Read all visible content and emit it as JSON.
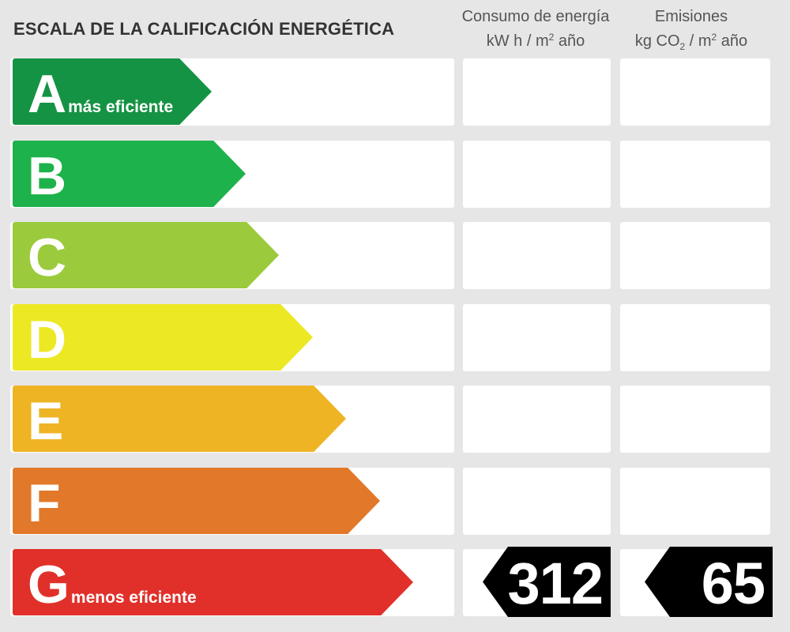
{
  "title": "ESCALA DE LA CALIFICACIÓN ENERGÉTICA",
  "columns": {
    "energy": {
      "line1": "Consumo de energía",
      "unit_a": "kW h  / m",
      "unit_sup": "2",
      "unit_b": " año"
    },
    "emissions": {
      "line1": "Emisiones",
      "unit_a": "kg CO",
      "unit_sub": "2",
      "unit_b": "  / m",
      "unit_sup": "2",
      "unit_c": " año"
    }
  },
  "ratings": [
    {
      "letter": "A",
      "caption": "más eficiente",
      "color": "#159344"
    },
    {
      "letter": "B",
      "caption": "",
      "color": "#1db24b"
    },
    {
      "letter": "C",
      "caption": "",
      "color": "#9bca3c"
    },
    {
      "letter": "D",
      "caption": "",
      "color": "#ece824"
    },
    {
      "letter": "E",
      "caption": "",
      "color": "#eeb423"
    },
    {
      "letter": "F",
      "caption": "",
      "color": "#e2782a"
    },
    {
      "letter": "G",
      "caption": "menos eficiente",
      "color": "#e1302a"
    }
  ],
  "result": {
    "rating": "G",
    "energy_value": "312",
    "emissions_value": "65"
  }
}
